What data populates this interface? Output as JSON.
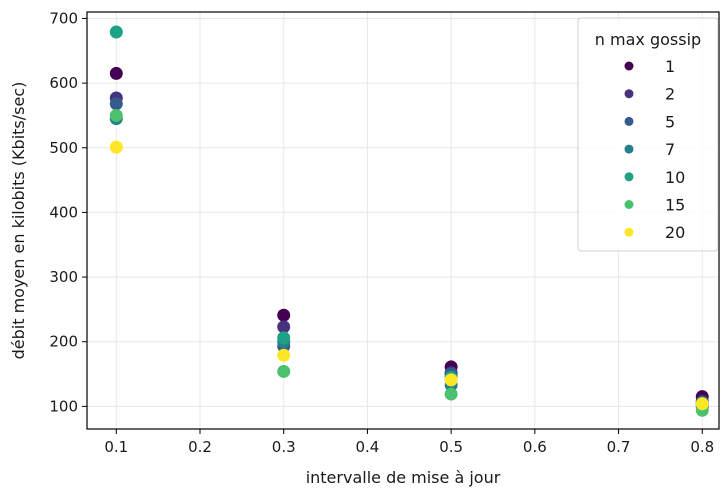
{
  "chart_data": {
    "type": "scatter",
    "xlabel": "intervalle de mise à jour",
    "ylabel": "débit moyen en kilobits (Kbits/sec)",
    "xlim": [
      0.065,
      0.82
    ],
    "ylim": [
      65,
      710
    ],
    "xticks": [
      0.1,
      0.2,
      0.3,
      0.4,
      0.5,
      0.6,
      0.7,
      0.8
    ],
    "xtick_labels": [
      "0.1",
      "0.2",
      "0.3",
      "0.4",
      "0.5",
      "0.6",
      "0.7",
      "0.8"
    ],
    "yticks": [
      100,
      200,
      300,
      400,
      500,
      600,
      700
    ],
    "ytick_labels": [
      "100",
      "200",
      "300",
      "400",
      "500",
      "600",
      "700"
    ],
    "grid": true,
    "legend": {
      "title": "n max gossip",
      "position": "top-right"
    },
    "x": [
      0.1,
      0.3,
      0.5,
      0.8
    ],
    "series": [
      {
        "name": "1",
        "color": "#440154",
        "values": [
          615,
          241,
          161,
          115
        ]
      },
      {
        "name": "2",
        "color": "#46327e",
        "values": [
          577,
          223,
          152,
          108
        ]
      },
      {
        "name": "5",
        "color": "#365c8d",
        "values": [
          568,
          193,
          150,
          103
        ]
      },
      {
        "name": "7",
        "color": "#277f8e",
        "values": [
          545,
          200,
          133,
          100
        ]
      },
      {
        "name": "10",
        "color": "#1fa187",
        "values": [
          679,
          206,
          145,
          105
        ]
      },
      {
        "name": "15",
        "color": "#4ac16d",
        "values": [
          550,
          154,
          119,
          94
        ]
      },
      {
        "name": "20",
        "color": "#fde725",
        "values": [
          501,
          179,
          141,
          104
        ]
      }
    ]
  }
}
